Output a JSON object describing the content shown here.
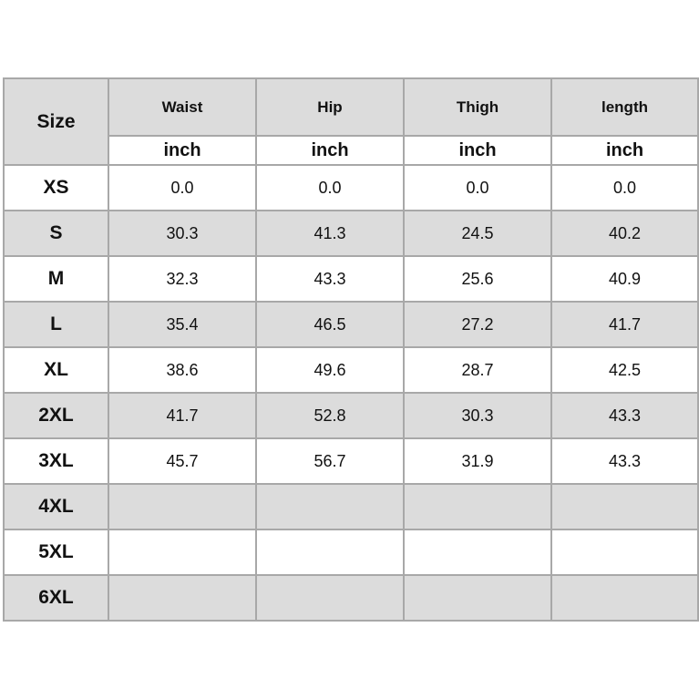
{
  "table": {
    "header": {
      "size": "Size",
      "columns": [
        "Waist",
        "Hip",
        "Thigh",
        "length"
      ],
      "units": [
        "inch",
        "inch",
        "inch",
        "inch"
      ]
    },
    "rows": [
      [
        "XS",
        "0.0",
        "0.0",
        "0.0",
        "0.0"
      ],
      [
        "S",
        "30.3",
        "41.3",
        "24.5",
        "40.2"
      ],
      [
        "M",
        "32.3",
        "43.3",
        "25.6",
        "40.9"
      ],
      [
        "L",
        "35.4",
        "46.5",
        "27.2",
        "41.7"
      ],
      [
        "XL",
        "38.6",
        "49.6",
        "28.7",
        "42.5"
      ],
      [
        "2XL",
        "41.7",
        "52.8",
        "30.3",
        "43.3"
      ],
      [
        "3XL",
        "45.7",
        "56.7",
        "31.9",
        "43.3"
      ],
      [
        "4XL"
      ],
      [
        "5XL"
      ],
      [
        "6XL"
      ]
    ]
  }
}
